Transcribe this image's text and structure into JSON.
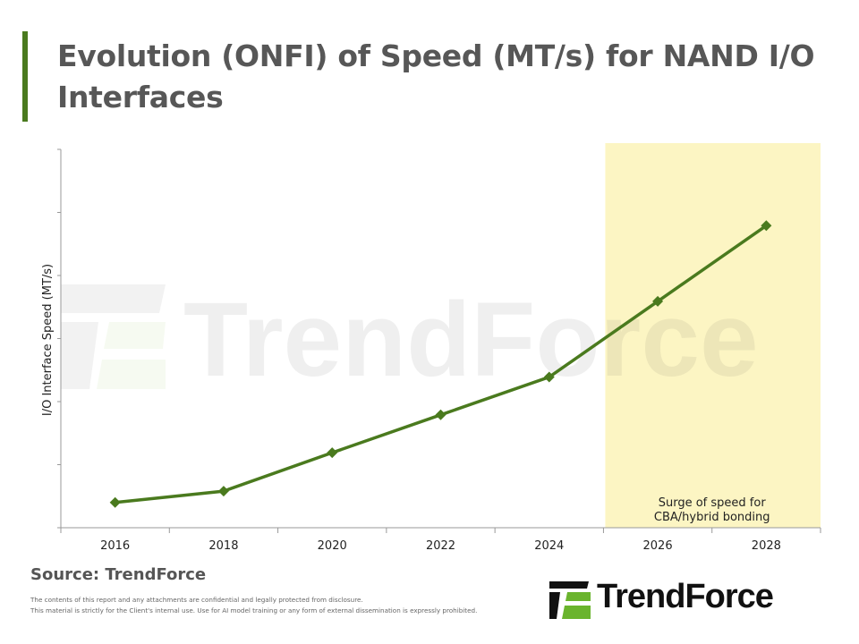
{
  "header": {
    "title": "Evolution (ONFI) of Speed (MT/s) for NAND I/O Interfaces"
  },
  "chart_data": {
    "type": "line",
    "title": "Evolution (ONFI) of Speed (MT/s) for NAND I/O Interfaces",
    "xlabel": "",
    "ylabel": "I/O Interface Speed (MT/s)",
    "categories": [
      "2016",
      "2018",
      "2020",
      "2022",
      "2024",
      "2026",
      "2028"
    ],
    "values": [
      400,
      580,
      1190,
      1790,
      2390,
      3590,
      4790
    ],
    "ylim": [
      0,
      6000
    ],
    "y_tick_labels_shown": false,
    "grid": false,
    "marker": "diamond",
    "series_color": "#4a7a1e",
    "highlight": {
      "from": "2026",
      "to": "2028",
      "color": "#fcf5c3",
      "annotation": [
        "Surge of speed for",
        "CBA/hybrid bonding"
      ]
    }
  },
  "footer": {
    "source": "Source: TrendForce",
    "disclaimer_1": "The contents of this report and any attachments are confidential and legally protected from disclosure.",
    "disclaimer_2": "This material is strictly for the Client's internal use. Use for AI model training or any form of external dissemination is expressly prohibited.",
    "logo_text": "TrendForce",
    "logo_colors": {
      "dark": "#111111",
      "green": "#6ab42d"
    }
  },
  "watermark": "TrendForce"
}
